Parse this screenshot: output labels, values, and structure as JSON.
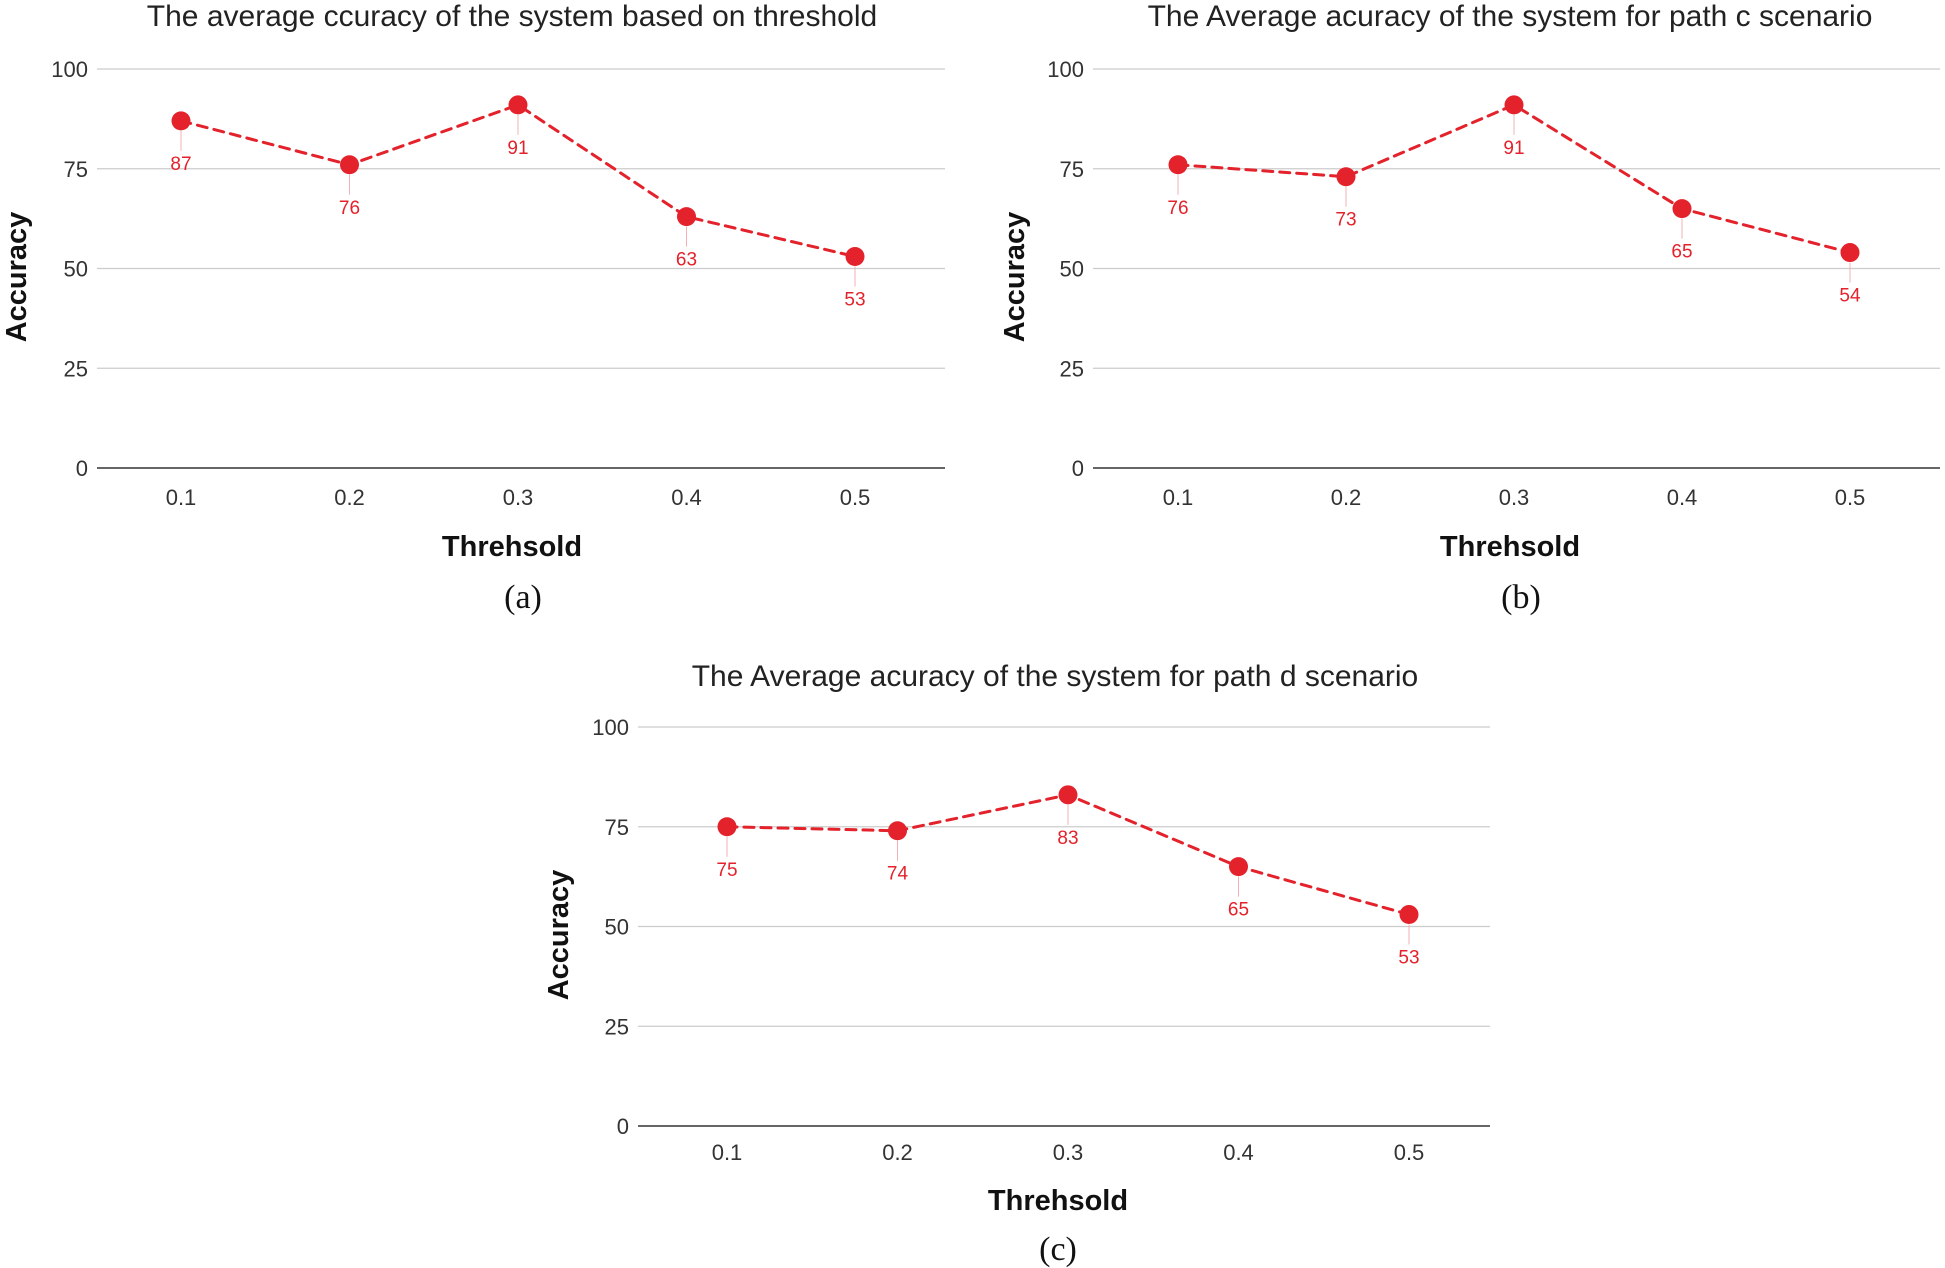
{
  "colors": {
    "series": "#e3222b",
    "grid": "#cccccc",
    "axis": "#333333"
  },
  "chart_data": [
    {
      "type": "line",
      "panel_label": "(a)",
      "title": "The average ccuracy of the system based on threshold",
      "xlabel": "Threhsold",
      "ylabel": "Accuracy",
      "categories": [
        "0.1",
        "0.2",
        "0.3",
        "0.4",
        "0.5"
      ],
      "values": [
        87,
        76,
        91,
        63,
        53
      ],
      "ylim": [
        0,
        100
      ],
      "yticks": [
        0,
        25,
        50,
        75,
        100
      ],
      "line_style": "dashed",
      "markers": true,
      "grid": true
    },
    {
      "type": "line",
      "panel_label": "(b)",
      "title": "The Average acuracy of the system for path c scenario",
      "xlabel": "Threhsold",
      "ylabel": "Accuracy",
      "categories": [
        "0.1",
        "0.2",
        "0.3",
        "0.4",
        "0.5"
      ],
      "values": [
        76,
        73,
        91,
        65,
        54
      ],
      "ylim": [
        0,
        100
      ],
      "yticks": [
        0,
        25,
        50,
        75,
        100
      ],
      "line_style": "dashed",
      "markers": true,
      "grid": true
    },
    {
      "type": "line",
      "panel_label": "(c)",
      "title": "The Average acuracy of the system for path d scenario",
      "xlabel": "Threhsold",
      "ylabel": "Accuracy",
      "categories": [
        "0.1",
        "0.2",
        "0.3",
        "0.4",
        "0.5"
      ],
      "values": [
        75,
        74,
        83,
        65,
        53
      ],
      "ylim": [
        0,
        100
      ],
      "yticks": [
        0,
        25,
        50,
        75,
        100
      ],
      "line_style": "dashed",
      "markers": true,
      "grid": true
    }
  ]
}
